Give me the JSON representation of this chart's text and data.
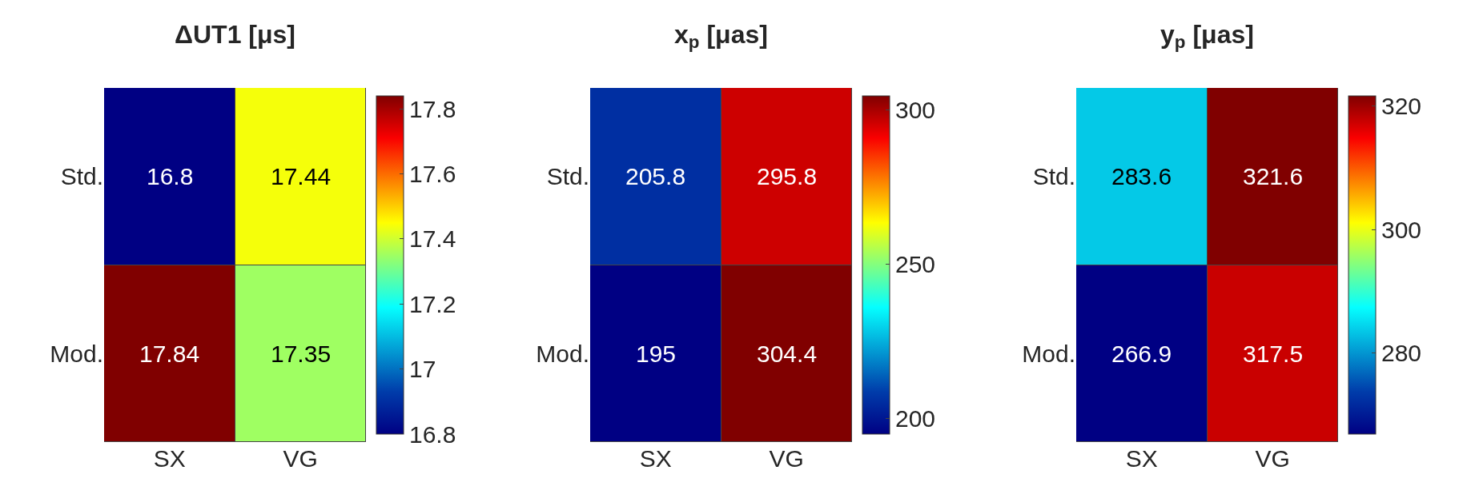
{
  "chart_data": [
    {
      "type": "heatmap",
      "title": "ΔUT1 [μs]",
      "categories": [
        "SX",
        "VG"
      ],
      "y_categories": [
        "Std.",
        "Mod."
      ],
      "cells": [
        [
          16.8,
          17.44
        ],
        [
          17.84,
          17.35
        ]
      ],
      "data_labels": true,
      "clim": [
        16.8,
        17.84
      ],
      "cticks": [
        16.8,
        17,
        17.2,
        17.4,
        17.6,
        17.8
      ]
    },
    {
      "type": "heatmap",
      "title": "x$_{p}$ [μas]",
      "categories": [
        "SX",
        "VG"
      ],
      "y_categories": [
        "Std.",
        "Mod."
      ],
      "cells": [
        [
          205.8,
          295.8
        ],
        [
          195,
          304.4
        ]
      ],
      "data_labels": true,
      "clim": [
        195,
        304.4
      ],
      "cticks": [
        200,
        250,
        300
      ]
    },
    {
      "type": "heatmap",
      "title": "y$_{p}$ [μas]",
      "categories": [
        "SX",
        "VG"
      ],
      "y_categories": [
        "Std.",
        "Mod."
      ],
      "cells": [
        [
          283.6,
          321.6
        ],
        [
          266.9,
          317.5
        ]
      ],
      "data_labels": true,
      "clim": [
        266.9,
        321.6
      ],
      "cticks": [
        280,
        300,
        320
      ]
    }
  ]
}
